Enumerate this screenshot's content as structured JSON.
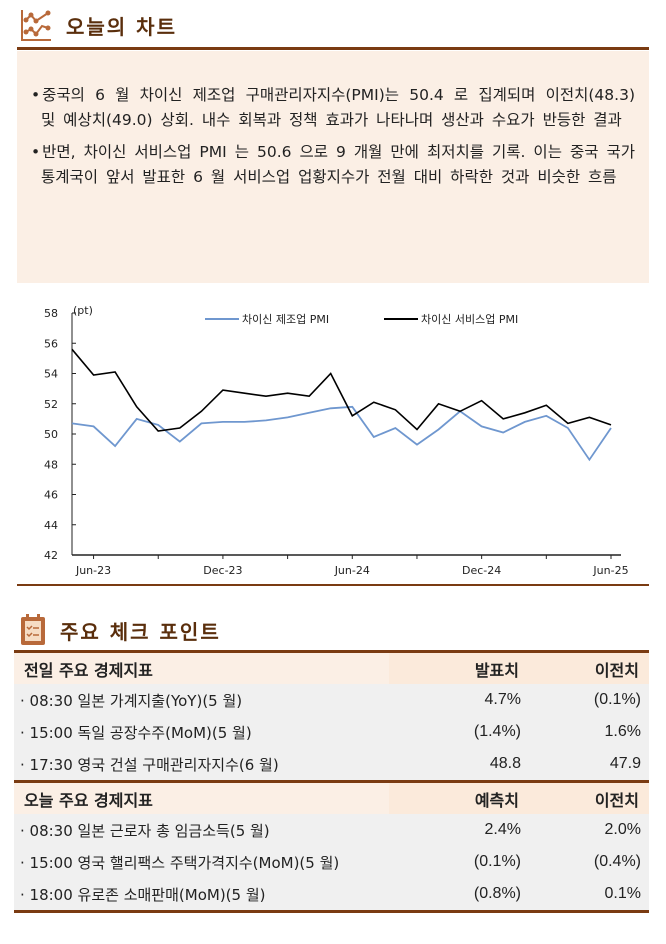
{
  "section1": {
    "title": "오늘의 차트",
    "icon": "scatter-chart-icon"
  },
  "summary": {
    "bullets": [
      "중국의 6 월 차이신 제조업 구매관리자지수(PMI)는 50.4 로 집계되며 이전치(48.3) 및 예상치(49.0) 상회. 내수 회복과 정책 효과가 나타나며 생산과 수요가 반등한 결과",
      "반면, 차이신 서비스업 PMI 는 50.6 으로 9 개월 만에 최저치를 기록. 이는 중국 국가통계국이 앞서 발표한 6 월 서비스업 업황지수가 전월 대비 하락한 것과 비슷한 흐름"
    ]
  },
  "chart_data": {
    "type": "line",
    "ylabel": "(pt)",
    "ylim": [
      42,
      58
    ],
    "yticks": [
      "58",
      "56",
      "54",
      "52",
      "50",
      "48",
      "46",
      "44",
      "42"
    ],
    "xtick_labels": [
      "Jun-23",
      "Dec-23",
      "Jun-24",
      "Dec-24",
      "Jun-25"
    ],
    "x": [
      "May-23",
      "Jun-23",
      "Jul-23",
      "Aug-23",
      "Sep-23",
      "Oct-23",
      "Nov-23",
      "Dec-23",
      "Jan-24",
      "Feb-24",
      "Mar-24",
      "Apr-24",
      "May-24",
      "Jun-24",
      "Jul-24",
      "Aug-24",
      "Sep-24",
      "Oct-24",
      "Nov-24",
      "Dec-24",
      "Jan-25",
      "Feb-25",
      "Mar-25",
      "Apr-25",
      "May-25",
      "Jun-25"
    ],
    "legend": "top",
    "grid": false,
    "series": [
      {
        "name": "차이신 제조업 PMI",
        "color": "#6f97cf",
        "values": [
          50.7,
          50.5,
          49.2,
          51.0,
          50.6,
          49.5,
          50.7,
          50.8,
          50.8,
          50.9,
          51.1,
          51.4,
          51.7,
          51.8,
          49.8,
          50.4,
          49.3,
          50.3,
          51.5,
          50.5,
          50.1,
          50.8,
          51.2,
          50.4,
          48.3,
          50.4
        ]
      },
      {
        "name": "차이신 서비스업 PMI",
        "color": "#000000",
        "values": [
          55.6,
          53.9,
          54.1,
          51.8,
          50.2,
          50.4,
          51.5,
          52.9,
          52.7,
          52.5,
          52.7,
          52.5,
          54.0,
          51.2,
          52.1,
          51.6,
          50.3,
          52.0,
          51.5,
          52.2,
          51.0,
          51.4,
          51.9,
          50.7,
          51.1,
          50.6
        ]
      }
    ]
  },
  "section2": {
    "title": "주요 체크 포인트",
    "icon": "checklist-clipboard-icon"
  },
  "yesterday": {
    "headers": [
      "전일 주요 경제지표",
      "발표치",
      "이전치"
    ],
    "rows": [
      [
        "· 08:30 일본 가계지출(YoY)(5 월)",
        "4.7%",
        "(0.1%)"
      ],
      [
        "· 15:00 독일 공장수주(MoM)(5 월)",
        "(1.4%)",
        "1.6%"
      ],
      [
        "· 17:30 영국 건설 구매관리자지수(6 월)",
        "48.8",
        "47.9"
      ]
    ]
  },
  "today": {
    "headers": [
      "오늘 주요 경제지표",
      "예측치",
      "이전치"
    ],
    "rows": [
      [
        "· 08:30 일본 근로자 총 임금소득(5 월)",
        "2.4%",
        "2.0%"
      ],
      [
        "· 15:00 영국 핼리팩스 주택가격지수(MoM)(5 월)",
        "(0.1%)",
        "(0.4%)"
      ],
      [
        "· 18:00 유로존 소매판매(MoM)(5 월)",
        "(0.8%)",
        "0.1%"
      ]
    ]
  }
}
